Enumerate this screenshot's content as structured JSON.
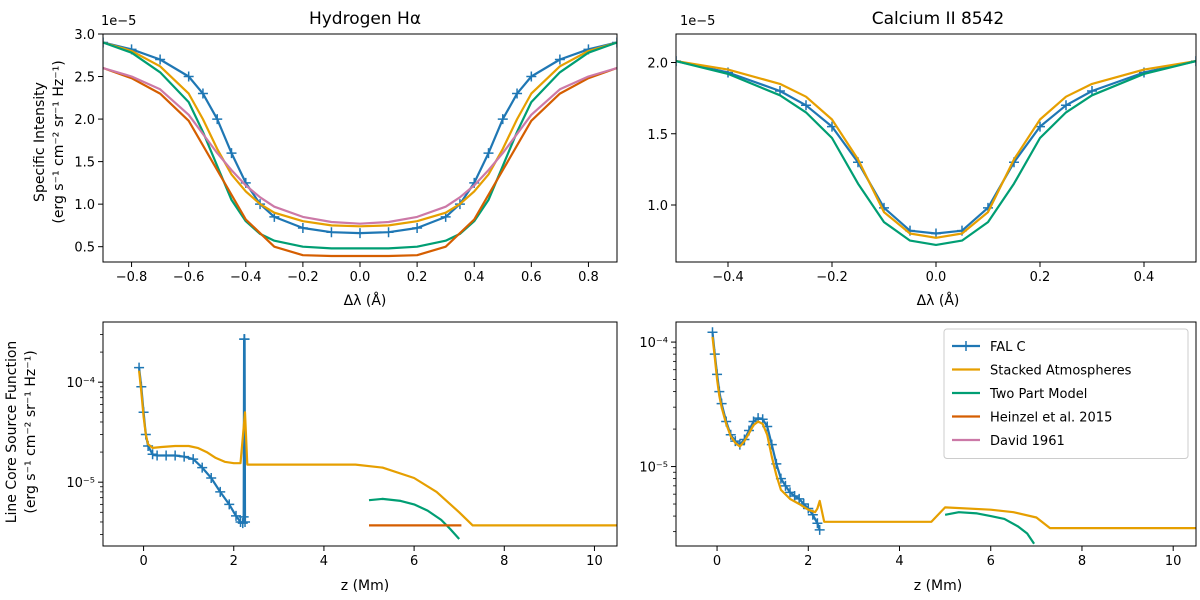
{
  "colors": {
    "fal": "#1f77b4",
    "stacked": "#e69f00",
    "twopart": "#009e73",
    "heinzel": "#d55e00",
    "david": "#cc79a7"
  },
  "legend": {
    "entries": [
      {
        "label": "FAL C",
        "color": "#1f77b4",
        "marker": "plus"
      },
      {
        "label": "Stacked Atmospheres",
        "color": "#e69f00"
      },
      {
        "label": "Two Part Model",
        "color": "#009e73"
      },
      {
        "label": "Heinzel et al. 2015",
        "color": "#d55e00"
      },
      {
        "label": "David 1961",
        "color": "#cc79a7"
      }
    ]
  },
  "chart_data": [
    {
      "type": "line",
      "title": "Hydrogen Hα",
      "xlabel": "Δλ (Å)",
      "ylabel_line1": "Specific Intensity",
      "ylabel_line2": "(erg s⁻¹ cm⁻² sr⁻¹ Hz⁻¹)",
      "exponent_label": "1e−5",
      "xlim": [
        -0.9,
        0.9
      ],
      "ylim": [
        0.32,
        3.0
      ],
      "xticks": [
        -0.8,
        -0.6,
        -0.4,
        -0.2,
        0.0,
        0.2,
        0.4,
        0.6,
        0.8
      ],
      "xtick_labels": [
        "−0.8",
        "−0.6",
        "−0.4",
        "−0.2",
        "0.0",
        "0.2",
        "0.4",
        "0.6",
        "0.8"
      ],
      "yticks": [
        0.5,
        1.0,
        1.5,
        2.0,
        2.5,
        3.0
      ],
      "ytick_labels": [
        "0.5",
        "1.0",
        "1.5",
        "2.0",
        "2.5",
        "3.0"
      ],
      "series": [
        {
          "name": "FAL C",
          "color": "#1f77b4",
          "marker": "plus",
          "x": [
            -0.9,
            -0.8,
            -0.7,
            -0.6,
            -0.55,
            -0.5,
            -0.45,
            -0.4,
            -0.35,
            -0.3,
            -0.2,
            -0.1,
            0.0,
            0.1,
            0.2,
            0.3,
            0.35,
            0.4,
            0.45,
            0.5,
            0.55,
            0.6,
            0.7,
            0.8,
            0.9
          ],
          "y": [
            2.9,
            2.82,
            2.7,
            2.5,
            2.3,
            2.0,
            1.6,
            1.25,
            1.0,
            0.85,
            0.72,
            0.67,
            0.66,
            0.67,
            0.72,
            0.85,
            1.0,
            1.25,
            1.6,
            2.0,
            2.3,
            2.5,
            2.7,
            2.82,
            2.9
          ]
        },
        {
          "name": "Stacked Atmospheres",
          "color": "#e69f00",
          "x": [
            -0.9,
            -0.8,
            -0.7,
            -0.6,
            -0.55,
            -0.5,
            -0.45,
            -0.4,
            -0.35,
            -0.3,
            -0.2,
            -0.1,
            0.0,
            0.1,
            0.2,
            0.3,
            0.35,
            0.4,
            0.45,
            0.5,
            0.55,
            0.6,
            0.7,
            0.8,
            0.9
          ],
          "y": [
            2.9,
            2.8,
            2.62,
            2.3,
            2.0,
            1.65,
            1.35,
            1.15,
            1.0,
            0.9,
            0.8,
            0.75,
            0.74,
            0.75,
            0.8,
            0.9,
            1.0,
            1.15,
            1.35,
            1.65,
            2.0,
            2.3,
            2.62,
            2.8,
            2.9
          ]
        },
        {
          "name": "Two Part Model",
          "color": "#009e73",
          "x": [
            -0.9,
            -0.8,
            -0.7,
            -0.6,
            -0.55,
            -0.5,
            -0.45,
            -0.4,
            -0.35,
            -0.3,
            -0.2,
            -0.1,
            0.0,
            0.1,
            0.2,
            0.3,
            0.35,
            0.4,
            0.45,
            0.5,
            0.55,
            0.6,
            0.7,
            0.8,
            0.9
          ],
          "y": [
            2.9,
            2.78,
            2.55,
            2.2,
            1.85,
            1.45,
            1.05,
            0.8,
            0.65,
            0.57,
            0.5,
            0.48,
            0.48,
            0.48,
            0.5,
            0.57,
            0.65,
            0.8,
            1.05,
            1.45,
            1.85,
            2.2,
            2.55,
            2.78,
            2.9
          ]
        },
        {
          "name": "Heinzel et al. 2015",
          "color": "#d55e00",
          "x": [
            -0.9,
            -0.8,
            -0.7,
            -0.6,
            -0.5,
            -0.4,
            -0.3,
            -0.2,
            -0.1,
            0.0,
            0.1,
            0.2,
            0.3,
            0.4,
            0.5,
            0.6,
            0.7,
            0.8,
            0.9
          ],
          "y": [
            2.6,
            2.48,
            2.3,
            1.98,
            1.4,
            0.82,
            0.5,
            0.4,
            0.39,
            0.39,
            0.39,
            0.4,
            0.5,
            0.82,
            1.4,
            1.98,
            2.3,
            2.48,
            2.6
          ]
        },
        {
          "name": "David 1961",
          "color": "#cc79a7",
          "x": [
            -0.9,
            -0.8,
            -0.7,
            -0.6,
            -0.5,
            -0.45,
            -0.4,
            -0.35,
            -0.3,
            -0.2,
            -0.1,
            0.0,
            0.1,
            0.2,
            0.3,
            0.35,
            0.4,
            0.45,
            0.5,
            0.6,
            0.7,
            0.8,
            0.9
          ],
          "y": [
            2.6,
            2.5,
            2.35,
            2.05,
            1.6,
            1.4,
            1.22,
            1.08,
            0.97,
            0.85,
            0.79,
            0.77,
            0.79,
            0.85,
            0.97,
            1.08,
            1.22,
            1.4,
            1.6,
            2.05,
            2.35,
            2.5,
            2.6
          ]
        }
      ]
    },
    {
      "type": "line",
      "title": "Calcium II 8542",
      "xlabel": "Δλ (Å)",
      "exponent_label": "1e−5",
      "xlim": [
        -0.5,
        0.5
      ],
      "ylim": [
        0.6,
        2.2
      ],
      "xticks": [
        -0.4,
        -0.2,
        0.0,
        0.2,
        0.4
      ],
      "xtick_labels": [
        "−0.4",
        "−0.2",
        "0.0",
        "0.2",
        "0.4"
      ],
      "yticks": [
        1.0,
        1.5,
        2.0
      ],
      "ytick_labels": [
        "1.0",
        "1.5",
        "2.0"
      ],
      "series": [
        {
          "name": "FAL C",
          "color": "#1f77b4",
          "marker": "plus",
          "x": [
            -0.5,
            -0.4,
            -0.3,
            -0.25,
            -0.2,
            -0.15,
            -0.1,
            -0.05,
            0.0,
            0.05,
            0.1,
            0.15,
            0.2,
            0.25,
            0.3,
            0.4,
            0.5
          ],
          "y": [
            2.01,
            1.93,
            1.8,
            1.7,
            1.55,
            1.3,
            0.98,
            0.82,
            0.8,
            0.82,
            0.98,
            1.3,
            1.55,
            1.7,
            1.8,
            1.93,
            2.01
          ]
        },
        {
          "name": "Stacked Atmospheres",
          "color": "#e69f00",
          "x": [
            -0.5,
            -0.4,
            -0.3,
            -0.25,
            -0.2,
            -0.15,
            -0.1,
            -0.05,
            0.0,
            0.05,
            0.1,
            0.15,
            0.2,
            0.25,
            0.3,
            0.4,
            0.5
          ],
          "y": [
            2.01,
            1.95,
            1.85,
            1.76,
            1.6,
            1.32,
            0.95,
            0.8,
            0.77,
            0.8,
            0.95,
            1.32,
            1.6,
            1.76,
            1.85,
            1.95,
            2.01
          ]
        },
        {
          "name": "Two Part Model",
          "color": "#009e73",
          "x": [
            -0.5,
            -0.4,
            -0.3,
            -0.25,
            -0.2,
            -0.15,
            -0.1,
            -0.05,
            0.0,
            0.05,
            0.1,
            0.15,
            0.2,
            0.25,
            0.3,
            0.4,
            0.5
          ],
          "y": [
            2.01,
            1.92,
            1.77,
            1.65,
            1.47,
            1.15,
            0.88,
            0.75,
            0.72,
            0.75,
            0.88,
            1.15,
            1.47,
            1.65,
            1.77,
            1.92,
            2.01
          ]
        }
      ]
    },
    {
      "type": "line",
      "yscale": "log",
      "xlabel": "z (Mm)",
      "ylabel_line1": "Line Core Source Function",
      "ylabel_line2": "(erg s⁻¹ cm⁻² sr⁻¹ Hz⁻¹)",
      "xlim": [
        -0.9,
        10.5
      ],
      "ylim": [
        2.3e-06,
        0.0004
      ],
      "xticks": [
        0,
        2,
        4,
        6,
        8,
        10
      ],
      "xtick_labels": [
        "0",
        "2",
        "4",
        "6",
        "8",
        "10"
      ],
      "yticks": [
        1e-05,
        0.0001
      ],
      "ytick_labels": [
        "10⁻⁵",
        "10⁻⁴"
      ],
      "series": [
        {
          "name": "FAL C",
          "color": "#1f77b4",
          "marker": "plus",
          "x": [
            -0.1,
            -0.05,
            0.0,
            0.05,
            0.1,
            0.2,
            0.3,
            0.5,
            0.7,
            0.9,
            1.1,
            1.3,
            1.5,
            1.7,
            1.9,
            2.05,
            2.15,
            2.2,
            2.22,
            2.23,
            2.24,
            2.25
          ],
          "y": [
            0.00014,
            9e-05,
            5e-05,
            3e-05,
            2.3e-05,
            1.9e-05,
            1.85e-05,
            1.85e-05,
            1.85e-05,
            1.8e-05,
            1.7e-05,
            1.4e-05,
            1.1e-05,
            8e-06,
            6e-06,
            4.6e-06,
            4e-06,
            3.9e-06,
            4.5e-06,
            0.00027,
            0.00027,
            4e-06
          ]
        },
        {
          "name": "Stacked Atmospheres",
          "color": "#e69f00",
          "x": [
            -0.1,
            -0.05,
            0.0,
            0.05,
            0.1,
            0.2,
            0.4,
            0.7,
            1.0,
            1.2,
            1.4,
            1.6,
            1.8,
            2.0,
            2.15,
            2.25,
            2.3,
            2.4,
            3.5,
            4.7,
            5.3,
            6.0,
            6.5,
            7.0,
            7.3,
            8.0,
            10.5
          ],
          "y": [
            0.00013,
            8e-05,
            4.5e-05,
            3e-05,
            2.4e-05,
            2.2e-05,
            2.25e-05,
            2.3e-05,
            2.3e-05,
            2.2e-05,
            2e-05,
            1.75e-05,
            1.6e-05,
            1.55e-05,
            1.55e-05,
            5e-05,
            1.5e-05,
            1.5e-05,
            1.5e-05,
            1.5e-05,
            1.4e-05,
            1.1e-05,
            8e-06,
            5e-06,
            3.7e-06,
            3.7e-06,
            3.7e-06
          ]
        },
        {
          "name": "Two Part Model",
          "color": "#009e73",
          "x": [
            5.0,
            5.3,
            5.7,
            6.0,
            6.3,
            6.6,
            6.8,
            7.0
          ],
          "y": [
            6.6e-06,
            6.8e-06,
            6.5e-06,
            6e-06,
            5.2e-06,
            4.2e-06,
            3.4e-06,
            2.7e-06
          ]
        },
        {
          "name": "Heinzel et al. 2015",
          "color": "#d55e00",
          "x": [
            5.0,
            7.05
          ],
          "y": [
            3.7e-06,
            3.7e-06
          ]
        }
      ]
    },
    {
      "type": "line",
      "yscale": "log",
      "xlabel": "z (Mm)",
      "xlim": [
        -0.9,
        10.5
      ],
      "ylim": [
        2.3e-06,
        0.000145
      ],
      "xticks": [
        0,
        2,
        4,
        6,
        8,
        10
      ],
      "xtick_labels": [
        "0",
        "2",
        "4",
        "6",
        "8",
        "10"
      ],
      "yticks": [
        1e-05,
        0.0001
      ],
      "ytick_labels": [
        "10⁻⁵",
        "10⁻⁴"
      ],
      "series": [
        {
          "name": "FAL C",
          "color": "#1f77b4",
          "marker": "plus",
          "x": [
            -0.1,
            -0.05,
            0.0,
            0.05,
            0.1,
            0.2,
            0.3,
            0.4,
            0.5,
            0.6,
            0.7,
            0.8,
            0.9,
            1.0,
            1.1,
            1.2,
            1.3,
            1.4,
            1.5,
            1.6,
            1.7,
            1.8,
            1.9,
            2.0,
            2.1,
            2.2,
            2.25
          ],
          "y": [
            0.00012,
            8e-05,
            5.5e-05,
            4e-05,
            3.2e-05,
            2.3e-05,
            1.8e-05,
            1.6e-05,
            1.5e-05,
            1.65e-05,
            1.95e-05,
            2.3e-05,
            2.45e-05,
            2.4e-05,
            2.1e-05,
            1.5e-05,
            1.05e-05,
            8e-06,
            7e-06,
            6.2e-06,
            5.8e-06,
            5.5e-06,
            5e-06,
            4.6e-06,
            4.1e-06,
            3.5e-06,
            3.1e-06
          ]
        },
        {
          "name": "Stacked Atmospheres",
          "color": "#e69f00",
          "x": [
            -0.1,
            -0.05,
            0.0,
            0.05,
            0.1,
            0.2,
            0.3,
            0.4,
            0.5,
            0.6,
            0.7,
            0.8,
            0.9,
            1.0,
            1.1,
            1.2,
            1.3,
            1.4,
            1.6,
            1.8,
            2.0,
            2.15,
            2.2,
            2.25,
            2.35,
            3.0,
            4.0,
            4.7,
            5.0,
            6.0,
            6.5,
            7.0,
            7.3,
            8.0,
            10.5
          ],
          "y": [
            0.00011,
            7.5e-05,
            5e-05,
            3.7e-05,
            3e-05,
            2.2e-05,
            1.75e-05,
            1.55e-05,
            1.45e-05,
            1.6e-05,
            1.85e-05,
            2.15e-05,
            2.3e-05,
            2.2e-05,
            1.8e-05,
            1.2e-05,
            8.5e-06,
            6.5e-06,
            5.5e-06,
            5e-06,
            4.5e-06,
            4.3e-06,
            4.6e-06,
            5.3e-06,
            3.6e-06,
            3.6e-06,
            3.6e-06,
            3.6e-06,
            4.7e-06,
            4.5e-06,
            4.3e-06,
            3.9e-06,
            3.2e-06,
            3.2e-06,
            3.2e-06
          ]
        },
        {
          "name": "Two Part Model",
          "color": "#009e73",
          "x": [
            5.0,
            5.3,
            5.7,
            6.0,
            6.3,
            6.6,
            6.8,
            6.95
          ],
          "y": [
            4.1e-06,
            4.3e-06,
            4.2e-06,
            4e-06,
            3.8e-06,
            3.3e-06,
            2.9e-06,
            2.4e-06
          ]
        }
      ]
    }
  ]
}
